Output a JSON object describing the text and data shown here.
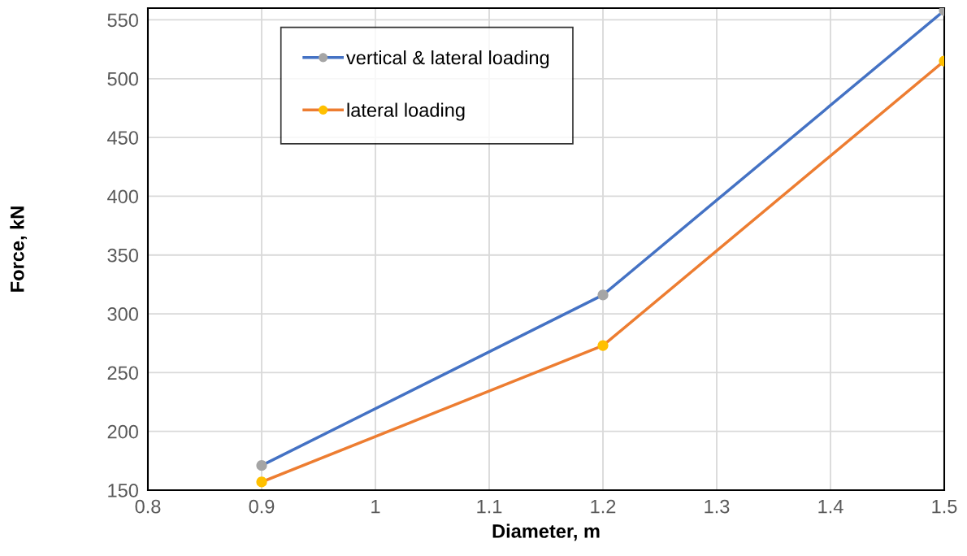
{
  "chart_data": {
    "type": "line",
    "xlabel": "Diameter, m",
    "ylabel": "Force, kN",
    "x": [
      0.9,
      1.2,
      1.5
    ],
    "series": [
      {
        "name": "vertical & lateral loading",
        "color": "#4472c4",
        "colors": [
          "#a5a5a5",
          "#a5a5a5",
          "#a5a5a5"
        ],
        "values": [
          171,
          316,
          558
        ]
      },
      {
        "name": "lateral loading",
        "color": "#ed7d31",
        "colors": [
          "#ffc000",
          "#ffc000",
          "#ffc000"
        ],
        "values": [
          157,
          273,
          515
        ]
      }
    ],
    "xlim": [
      0.8,
      1.5
    ],
    "xticks": [
      0.8,
      0.9,
      {
        "value": 1.0,
        "label": "1"
      },
      1.1,
      1.2,
      1.3,
      1.4,
      1.5
    ],
    "ylim": [
      150,
      560
    ],
    "yticks": [
      150,
      200,
      250,
      300,
      350,
      400,
      450,
      500,
      550
    ],
    "grid": true,
    "legend": "top left",
    "marker": "circle",
    "line_style": "solid"
  }
}
